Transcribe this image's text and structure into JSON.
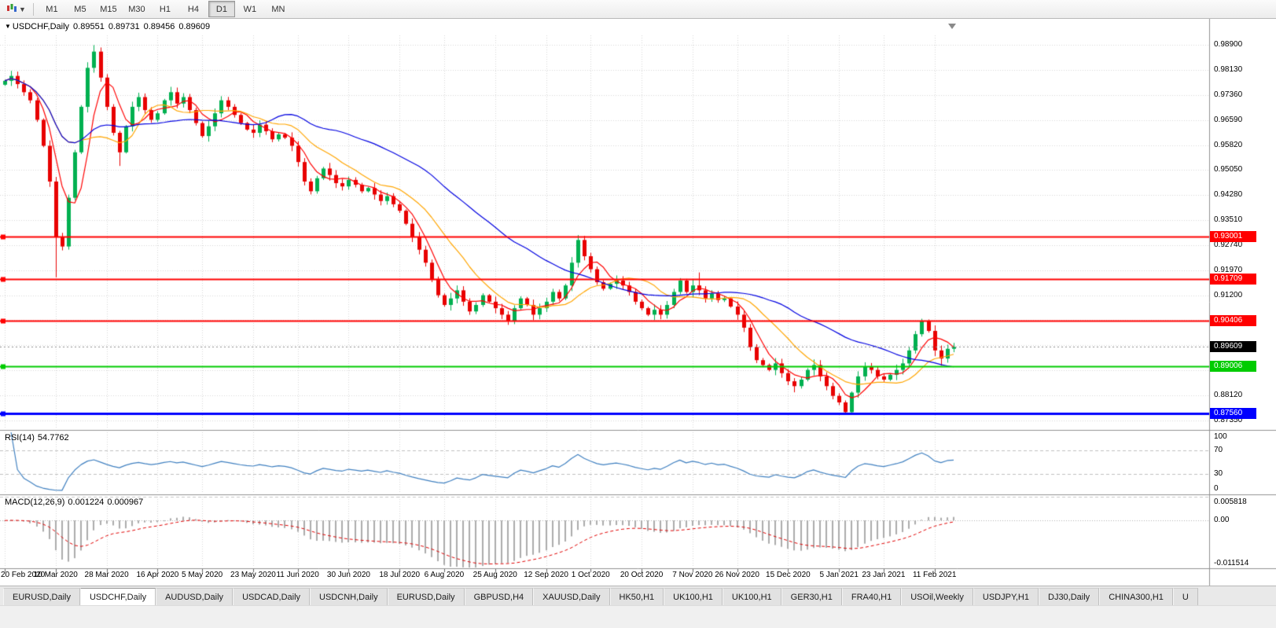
{
  "toolbar": {
    "timeframes": [
      {
        "label": "M1",
        "active": false
      },
      {
        "label": "M5",
        "active": false
      },
      {
        "label": "M15",
        "active": false
      },
      {
        "label": "M30",
        "active": false
      },
      {
        "label": "H1",
        "active": false
      },
      {
        "label": "H4",
        "active": false
      },
      {
        "label": "D1",
        "active": true
      },
      {
        "label": "W1",
        "active": false
      },
      {
        "label": "MN",
        "active": false
      }
    ]
  },
  "chart": {
    "title": {
      "symbol": "USDCHF,Daily",
      "open": "0.89551",
      "high": "0.89731",
      "low": "0.89456",
      "close": "0.89609"
    },
    "price_axis_labels": [
      "0.98900",
      "0.98130",
      "0.97360",
      "0.96590",
      "0.95820",
      "0.95050",
      "0.94280",
      "0.93510",
      "0.92740",
      "0.91970",
      "0.91200",
      "0.90430",
      "0.89660",
      "0.88890",
      "0.88120",
      "0.87350"
    ]
  },
  "rsi": {
    "name": "RSI(14)",
    "value": "54.7762",
    "axis_labels": [
      "100",
      "70",
      "30",
      "0"
    ],
    "levels": [
      70,
      30
    ],
    "line_color": "#4080C0"
  },
  "macd": {
    "name": "MACD(12,26,9)",
    "value_main": "0.001224",
    "value_signal": "0.000967",
    "axis_max": "0.005818",
    "axis_zero": "0.00",
    "axis_min": "-0.011514",
    "histogram_color": "#ABABAB",
    "signal_color": "#E00000"
  },
  "chart_data": {
    "type": "candlestick",
    "symbol": "USDCHF",
    "timeframe": "Daily",
    "current_price": {
      "label": "0.89609",
      "price": 0.89609,
      "badge_color": "#000000"
    },
    "price_range": {
      "min": 0.871,
      "max": 0.992
    },
    "x_labels": [
      "20 Feb 2020",
      "10 Mar 2020",
      "28 Mar 2020",
      "16 Apr 2020",
      "5 May 2020",
      "23 May 2020",
      "11 Jun 2020",
      "30 Jun 2020",
      "18 Jul 2020",
      "6 Aug 2020",
      "25 Aug 2020",
      "12 Sep 2020",
      "1 Oct 2020",
      "20 Oct 2020",
      "7 Nov 2020",
      "26 Nov 2020",
      "15 Dec 2020",
      "5 Jan 2021",
      "23 Jan 2021",
      "11 Feb 2021"
    ],
    "x_label_indices": [
      0,
      8,
      16,
      24,
      31,
      39,
      46,
      54,
      62,
      69,
      77,
      85,
      92,
      100,
      108,
      115,
      123,
      131,
      138,
      146
    ],
    "closes": [
      0.978,
      0.9795,
      0.977,
      0.9745,
      0.972,
      0.966,
      0.958,
      0.947,
      0.93,
      0.927,
      0.942,
      0.956,
      0.97,
      0.982,
      0.987,
      0.979,
      0.97,
      0.962,
      0.956,
      0.964,
      0.97,
      0.973,
      0.969,
      0.966,
      0.968,
      0.972,
      0.9745,
      0.971,
      0.973,
      0.969,
      0.965,
      0.961,
      0.964,
      0.968,
      0.972,
      0.97,
      0.9675,
      0.965,
      0.963,
      0.962,
      0.9645,
      0.9625,
      0.96,
      0.9615,
      0.9605,
      0.958,
      0.953,
      0.947,
      0.944,
      0.948,
      0.951,
      0.949,
      0.9465,
      0.9455,
      0.9475,
      0.946,
      0.944,
      0.945,
      0.943,
      0.941,
      0.9425,
      0.94,
      0.938,
      0.934,
      0.93,
      0.926,
      0.922,
      0.917,
      0.912,
      0.909,
      0.911,
      0.9135,
      0.91,
      0.907,
      0.909,
      0.912,
      0.91,
      0.908,
      0.906,
      0.904,
      0.908,
      0.911,
      0.909,
      0.906,
      0.908,
      0.91,
      0.913,
      0.911,
      0.915,
      0.922,
      0.929,
      0.924,
      0.92,
      0.916,
      0.914,
      0.9155,
      0.9165,
      0.915,
      0.913,
      0.91,
      0.908,
      0.906,
      0.9075,
      0.906,
      0.909,
      0.913,
      0.9165,
      0.913,
      0.915,
      0.9135,
      0.911,
      0.9125,
      0.9105,
      0.911,
      0.9085,
      0.906,
      0.902,
      0.896,
      0.892,
      0.8905,
      0.889,
      0.891,
      0.888,
      0.8855,
      0.884,
      0.886,
      0.889,
      0.8905,
      0.887,
      0.884,
      0.881,
      0.879,
      0.876,
      0.882,
      0.887,
      0.89,
      0.889,
      0.887,
      0.886,
      0.8875,
      0.889,
      0.891,
      0.895,
      0.9,
      0.904,
      0.901,
      0.895,
      0.8925,
      0.8955,
      0.89609
    ],
    "extremes": {
      "8": {
        "low": 0.9175
      },
      "14": {
        "high": 0.989
      },
      "18": {
        "low": 0.9518
      },
      "90": {
        "high": 0.93
      },
      "106": {
        "high": 0.9172
      },
      "109": {
        "high": 0.919
      },
      "124": {
        "low": 0.8821
      },
      "132": {
        "low": 0.8756
      },
      "144": {
        "high": 0.9046
      },
      "147": {
        "low": 0.8903
      },
      "149": {
        "high": 0.89731,
        "low": 0.89456
      }
    },
    "wick": 0.0015,
    "bull_color": "#00B050",
    "bear_color": "#E80000",
    "grid_color": "#D6D6D6",
    "moving_averages": [
      {
        "period": 5,
        "color": "#FF0000"
      },
      {
        "period": 13,
        "color": "#FFA500"
      },
      {
        "period": 34,
        "color": "#0000E0"
      }
    ],
    "hlines": [
      {
        "label": "0.93001",
        "price": 0.93001,
        "color": "#FF0000",
        "width": 2
      },
      {
        "label": "0.91709",
        "price": 0.91709,
        "color": "#FF0000",
        "width": 2
      },
      {
        "label": "0.90406",
        "price": 0.90406,
        "color": "#FF0000",
        "width": 2
      },
      {
        "label": "0.89006",
        "price": 0.89006,
        "color": "#00CC00",
        "width": 2
      },
      {
        "label": "0.87560",
        "price": 0.8756,
        "color": "#0000FF",
        "width": 3
      }
    ],
    "macd_range": {
      "max": 0.005818,
      "min": -0.011514
    },
    "rsi_range": {
      "max": 100,
      "min": 0
    }
  },
  "tabs": [
    {
      "label": "EURUSD,Daily",
      "active": false
    },
    {
      "label": "USDCHF,Daily",
      "active": true
    },
    {
      "label": "AUDUSD,Daily",
      "active": false
    },
    {
      "label": "USDCAD,Daily",
      "active": false
    },
    {
      "label": "USDCNH,Daily",
      "active": false
    },
    {
      "label": "EURUSD,Daily",
      "active": false
    },
    {
      "label": "GBPUSD,H4",
      "active": false
    },
    {
      "label": "XAUUSD,Daily",
      "active": false
    },
    {
      "label": "HK50,H1",
      "active": false
    },
    {
      "label": "UK100,H1",
      "active": false
    },
    {
      "label": "UK100,H1",
      "active": false
    },
    {
      "label": "GER30,H1",
      "active": false
    },
    {
      "label": "FRA40,H1",
      "active": false
    },
    {
      "label": "USOil,Weekly",
      "active": false
    },
    {
      "label": "USDJPY,H1",
      "active": false
    },
    {
      "label": "DJ30,Daily",
      "active": false
    },
    {
      "label": "CHINA300,H1",
      "active": false
    },
    {
      "label": "U",
      "active": false
    }
  ]
}
